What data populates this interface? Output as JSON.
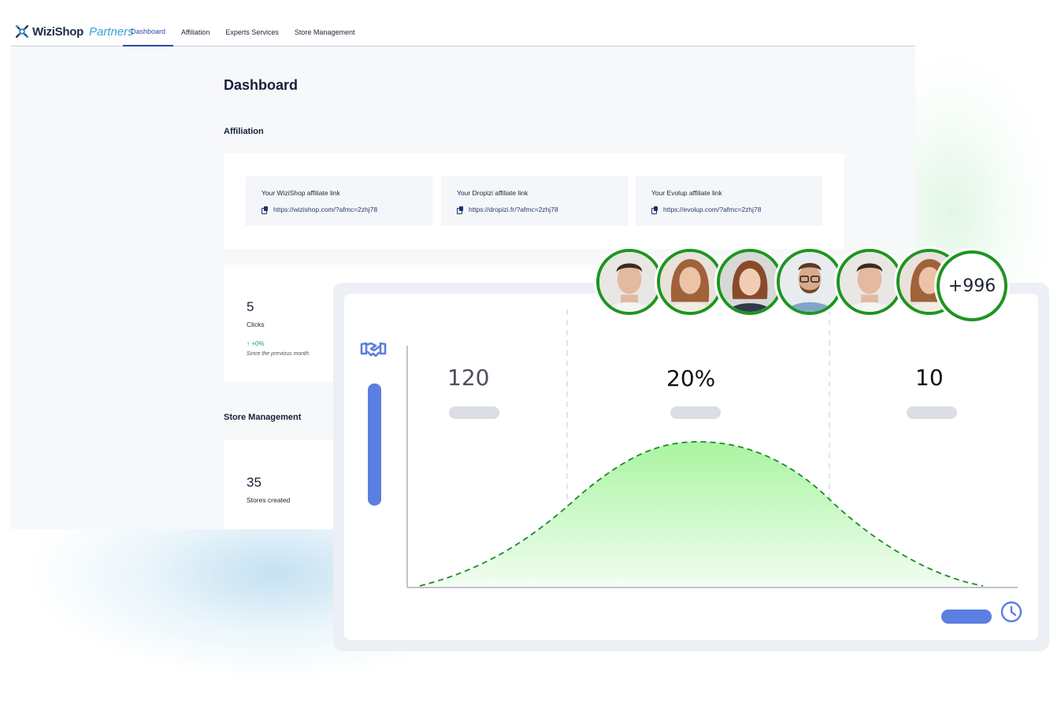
{
  "brand": {
    "name": "WiziShop",
    "suffix": "Partners"
  },
  "nav": {
    "items": [
      {
        "label": "Dashboard",
        "active": true
      },
      {
        "label": "Affiliation",
        "active": false
      },
      {
        "label": "Experts Services",
        "active": false
      },
      {
        "label": "Store Management",
        "active": false
      }
    ]
  },
  "page": {
    "title": "Dashboard"
  },
  "affiliation": {
    "title": "Affiliation",
    "links": [
      {
        "label": "Your WiziShop affiliate link",
        "url": "https://wizishop.com/?afmc=2zhj78"
      },
      {
        "label": "Your Dropizi affiliate link",
        "url": "https://dropizi.fr/?afmc=2zhj78"
      },
      {
        "label": "Your Evolup affiliate link",
        "url": "https://evolup.com/?afmc=2zhj78"
      }
    ]
  },
  "clicks": {
    "value": "5",
    "label": "Clicks",
    "delta": "↑ +0%",
    "note": "Since the previous month"
  },
  "store_management": {
    "title": "Store Management",
    "value": "35",
    "label": "Stores created"
  },
  "overlay": {
    "metrics": [
      {
        "value": "120",
        "color": "#4b4f5a"
      },
      {
        "value": "20%",
        "color": "#111111"
      },
      {
        "value": "10",
        "color": "#111111"
      }
    ],
    "avatars_more": "+996",
    "accent": "#5b7fe0",
    "curve_color": "#1d8a2a",
    "icons": [
      "handshake-icon",
      "clock-icon"
    ]
  }
}
